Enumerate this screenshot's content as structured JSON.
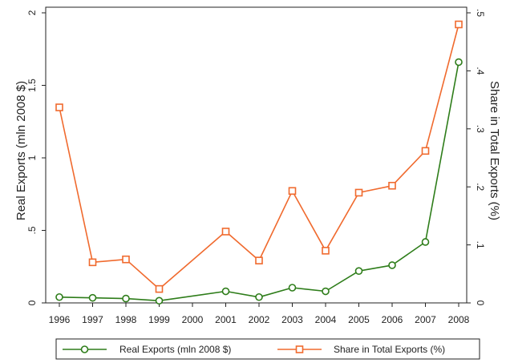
{
  "chart_data": {
    "type": "line",
    "x": [
      1996,
      1997,
      1998,
      1999,
      2000,
      2001,
      2002,
      2003,
      2004,
      2005,
      2006,
      2007,
      2008
    ],
    "x_tick_labels": [
      "1996",
      "1997",
      "1998",
      "1999",
      "2000",
      "2001",
      "2002",
      "2003",
      "2004",
      "2005",
      "2006",
      "2007",
      "2008"
    ],
    "ylabel": "Real Exports (mln 2008 $)",
    "y2label": "Share in Total Exports (%)",
    "ylim": [
      0,
      2
    ],
    "y2lim": [
      0,
      0.5
    ],
    "y_ticks": [
      0,
      0.5,
      1,
      1.5,
      2
    ],
    "y_tick_labels": [
      "0",
      ".5",
      "1",
      "1.5",
      "2"
    ],
    "y2_ticks": [
      0,
      0.1,
      0.2,
      0.3,
      0.4,
      0.5
    ],
    "y2_tick_labels": [
      "0",
      ".1",
      ".2",
      ".3",
      ".4",
      ".5"
    ],
    "grid": false,
    "legend_position": "bottom",
    "series": [
      {
        "name": "Real Exports (mln 2008 $)",
        "axis": "left",
        "marker": "circle",
        "color": "#2e7d1a",
        "x": [
          1996,
          1997,
          1998,
          1999,
          2001,
          2002,
          2003,
          2004,
          2005,
          2006,
          2007,
          2008
        ],
        "values": [
          0.04,
          0.035,
          0.03,
          0.015,
          0.08,
          0.04,
          0.105,
          0.08,
          0.22,
          0.26,
          0.42,
          1.66
        ]
      },
      {
        "name": "Share in Total Exports (%)",
        "axis": "right",
        "marker": "square",
        "color": "#f06a2e",
        "x": [
          1996,
          1997,
          1998,
          1999,
          2001,
          2002,
          2003,
          2004,
          2005,
          2006,
          2007,
          2008
        ],
        "values": [
          0.337,
          0.07,
          0.075,
          0.024,
          0.123,
          0.073,
          0.193,
          0.09,
          0.19,
          0.202,
          0.262,
          0.48
        ]
      }
    ]
  }
}
